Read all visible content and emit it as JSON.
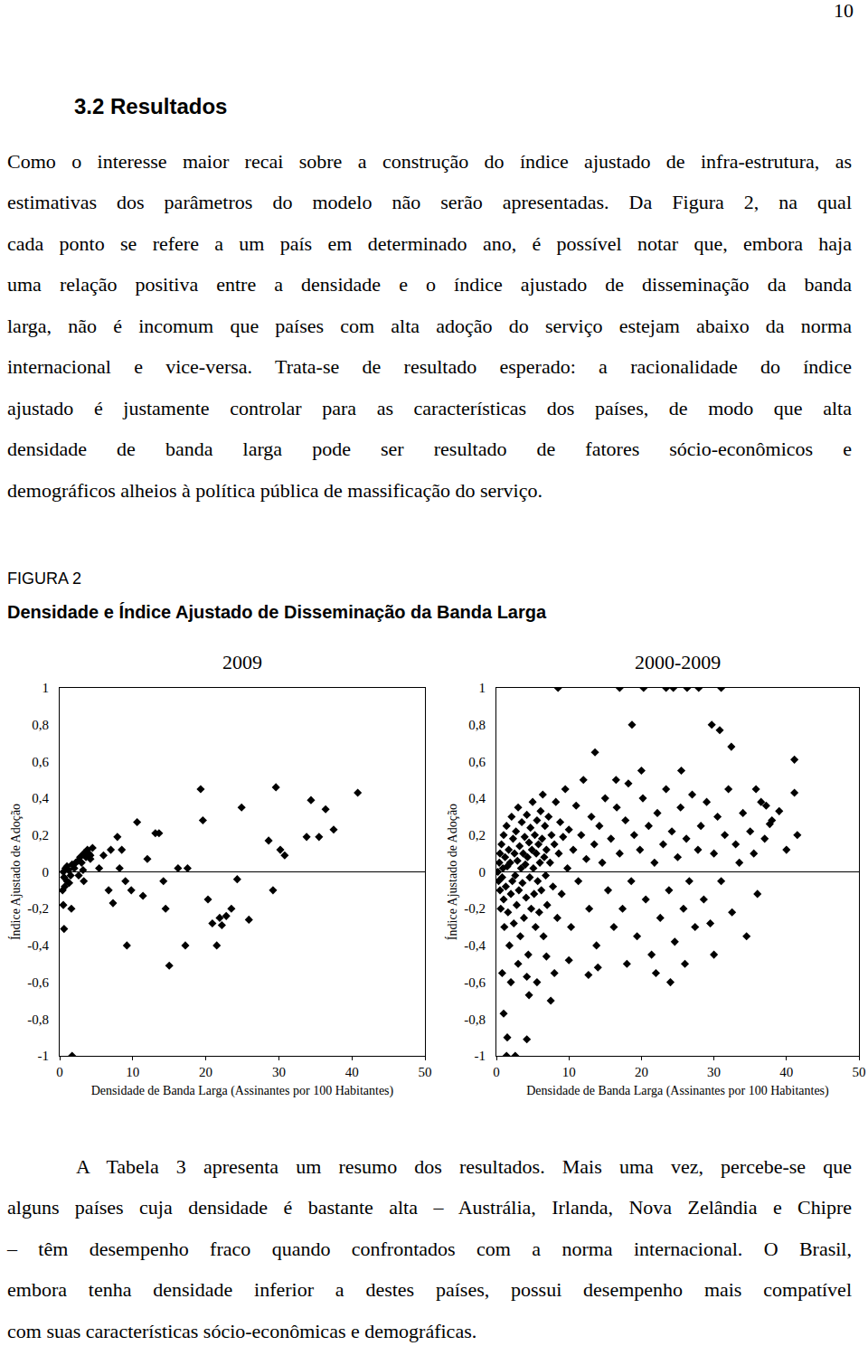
{
  "page_number": "10",
  "heading": "3.2 Resultados",
  "paragraphs": [
    {
      "lines": [
        "Como o interesse maior recai sobre a construção do índice ajustado de infra-estrutura, as",
        "estimativas dos parâmetros do modelo não serão apresentadas. Da Figura 2, na qual",
        "cada ponto se refere a um país em determinado ano, é possível notar que, embora haja",
        "uma relação positiva entre a densidade e o índice ajustado de disseminação da banda",
        "larga, não é incomum que países com alta adoção do serviço estejam abaixo da norma",
        "internacional e vice-versa. Trata-se de resultado esperado: a racionalidade do índice",
        "ajustado é justamente controlar para as características dos países, de modo que alta",
        "densidade de banda larga pode ser resultado de fatores sócio-econômicos e",
        "demográficos alheios à política pública de massificação do serviço."
      ]
    },
    {
      "lines": [
        "A Tabela 3 apresenta um resumo dos resultados. Mais uma vez, percebe-se que",
        "alguns países cuja densidade é bastante alta – Austrália, Irlanda, Nova Zelândia e Chipre",
        "– têm desempenho fraco quando confrontados com a norma internacional. O Brasil,",
        "embora tenha densidade inferior a destes países, possui desempenho mais compatível",
        "com suas características sócio-econômicas e demográficas."
      ]
    }
  ],
  "figure": {
    "label": "FIGURA 2",
    "caption": "Densidade e Índice Ajustado de Disseminação da Banda Larga"
  },
  "chart_data": [
    {
      "type": "scatter",
      "title": "2009",
      "x_label": "Densidade de Banda Larga (Assinantes por 100 Habitantes)",
      "y_label": "Índice Ajustado de Adoção",
      "marker": "diamond",
      "color": "#000000",
      "grid": false,
      "xlim": [
        0,
        50
      ],
      "xticks": [
        0,
        10,
        20,
        30,
        40,
        50
      ],
      "ylim": [
        -1,
        1
      ],
      "yticks": [
        -1,
        {
          "value": -0.8,
          "label": "-0,8"
        },
        {
          "value": -0.6,
          "label": "-0,6"
        },
        {
          "value": -0.4,
          "label": "-0,4"
        },
        {
          "value": -0.2,
          "label": "-0,2"
        },
        0,
        {
          "value": 0.2,
          "label": "0,2"
        },
        {
          "value": 0.4,
          "label": "0,4"
        },
        {
          "value": 0.6,
          "label": "0,6"
        },
        {
          "value": 0.8,
          "label": "0,8"
        },
        1
      ],
      "x": [
        0.5,
        0.6,
        0.8,
        1,
        1.2,
        1,
        1.5,
        1.7,
        2,
        2.2,
        0.7,
        1.3,
        2.5,
        2.8,
        3,
        3.3,
        3.6,
        3.8,
        4,
        4.2,
        4.5,
        2.6,
        3.2,
        0.4,
        0.5,
        0.6,
        1.6,
        1.7,
        3.3,
        4.2,
        5.4,
        6,
        7,
        7.9,
        8.5,
        8.2,
        9,
        9.2,
        6.7,
        7.3,
        9.8,
        10.6,
        11.4,
        12,
        13.1,
        13.6,
        14.2,
        14.5,
        15,
        16.2,
        17.2,
        17.5,
        19.3,
        19.6,
        20.3,
        20.9,
        21.5,
        21.9,
        22.2,
        22.8,
        23.5,
        24.3,
        24.9,
        25.9,
        28.6,
        29.2,
        29.6,
        30.2,
        30.8,
        33.8,
        34.4,
        35.5,
        36.4,
        37.5,
        40.8
      ],
      "values": [
        0,
        -0.03,
        0.02,
        -0.05,
        0.01,
        0.03,
        -0.02,
        0.04,
        0.02,
        0.05,
        -0.08,
        -0.06,
        0.06,
        0.08,
        0.05,
        0.1,
        0.08,
        0.12,
        0.1,
        0.07,
        0.13,
        -0.02,
        0.01,
        -0.1,
        -0.18,
        -0.31,
        -0.2,
        -1,
        -0.05,
        0.09,
        0.02,
        0.09,
        0.12,
        0.19,
        0.12,
        0.02,
        -0.05,
        -0.4,
        -0.1,
        -0.17,
        -0.1,
        0.27,
        -0.13,
        0.07,
        0.21,
        0.21,
        -0.05,
        -0.2,
        -0.51,
        0.02,
        -0.4,
        0.02,
        0.45,
        0.28,
        -0.15,
        -0.28,
        -0.4,
        -0.25,
        -0.29,
        -0.24,
        -0.2,
        -0.04,
        0.35,
        -0.26,
        0.17,
        -0.1,
        0.46,
        0.12,
        0.09,
        0.19,
        0.39,
        0.19,
        0.34,
        0.23,
        0.43
      ]
    },
    {
      "type": "scatter",
      "title": "2000-2009",
      "x_label": "Densidade de Banda Larga (Assinantes por 100 Habitantes)",
      "y_label": "Índice Ajustado de Adoção",
      "marker": "diamond",
      "color": "#000000",
      "grid": false,
      "xlim": [
        0,
        50
      ],
      "xticks": [
        0,
        10,
        20,
        30,
        40,
        50
      ],
      "ylim": [
        -1,
        1
      ],
      "yticks": [
        -1,
        {
          "value": -0.8,
          "label": "-0,8"
        },
        {
          "value": -0.6,
          "label": "-0,6"
        },
        {
          "value": -0.4,
          "label": "-0,4"
        },
        {
          "value": -0.2,
          "label": "-0,2"
        },
        0,
        {
          "value": 0.2,
          "label": "0,2"
        },
        {
          "value": 0.4,
          "label": "0,4"
        },
        {
          "value": 0.6,
          "label": "0,6"
        },
        {
          "value": 0.8,
          "label": "0,8"
        },
        1
      ],
      "x": [
        0.2,
        0.3,
        0.4,
        0.5,
        0.5,
        0.6,
        0.7,
        0.8,
        0.9,
        1,
        1,
        1.1,
        1.2,
        1.3,
        1.4,
        1.5,
        1.6,
        1.7,
        1.8,
        1.9,
        2,
        2.1,
        2.2,
        2.3,
        2.4,
        2.5,
        2.6,
        2.7,
        2.8,
        2.9,
        3,
        3.1,
        3.2,
        3.3,
        3.4,
        3.5,
        3.6,
        3.7,
        3.8,
        3.9,
        4,
        4.1,
        4.2,
        4.3,
        4.4,
        4.5,
        4.6,
        4.7,
        4.8,
        4.9,
        5,
        5.1,
        5.2,
        5.3,
        5.4,
        5.5,
        5.6,
        5.7,
        5.8,
        5.9,
        6,
        6.1,
        6.2,
        6.3,
        6.4,
        6.5,
        6.6,
        6.7,
        6.8,
        6.9,
        7,
        7.2,
        7.4,
        7.6,
        7.8,
        8,
        8.2,
        8.4,
        8.6,
        8.8,
        9,
        9.2,
        9.5,
        9.8,
        10,
        10.3,
        10.6,
        11,
        11.3,
        11.7,
        12,
        12.4,
        12.8,
        13.1,
        13.5,
        13.8,
        14.2,
        14.6,
        15,
        15.4,
        15.8,
        16.2,
        16.6,
        17,
        17.4,
        17.8,
        18.2,
        18.6,
        19,
        19.4,
        19.8,
        20.2,
        20.6,
        21,
        21.4,
        21.8,
        22.2,
        22.6,
        23,
        23.4,
        23.8,
        24.2,
        24.6,
        25,
        25.4,
        25.8,
        26.2,
        26.6,
        27,
        27.4,
        27.8,
        28.2,
        28.6,
        29,
        29.5,
        30,
        30.5,
        31,
        31.5,
        32,
        32.5,
        33,
        33.5,
        34,
        34.5,
        35,
        35.5,
        36,
        36.5,
        37,
        38,
        39,
        40,
        41.5,
        37.7,
        37.2,
        35.8,
        41.1,
        41.1,
        8.5,
        17,
        20.3,
        23.4,
        24.4,
        26.3,
        27.9,
        31,
        18.7,
        29.7,
        30.8,
        32.4,
        13.6,
        20,
        16.5,
        25.5,
        1.5,
        4.2,
        1.4,
        2.6,
        1,
        5.6,
        4.2,
        4.5,
        12.7,
        6.9,
        2,
        3,
        8,
        10,
        14,
        18,
        22,
        26,
        30,
        24,
        0.8,
        7.5
      ],
      "values": [
        0,
        -0.05,
        0.05,
        -0.1,
        0.1,
        -0.2,
        0.15,
        -0.03,
        0.02,
        -0.15,
        0.2,
        -0.3,
        0.08,
        -0.08,
        0.25,
        0.03,
        -0.22,
        0.12,
        -0.4,
        0.05,
        -0.12,
        0.3,
        -0.05,
        0.18,
        -0.28,
        0.1,
        -0.02,
        0.22,
        -0.18,
        0.06,
        0.35,
        -0.1,
        0.14,
        -0.35,
        0.02,
        0.27,
        -0.06,
        0.1,
        -0.25,
        0.19,
        0.04,
        -0.14,
        0.31,
        0.08,
        -0.45,
        0.16,
        -0.03,
        0.24,
        -0.2,
        0.12,
        0.38,
        0.02,
        -0.12,
        0.2,
        -0.3,
        0.1,
        0.28,
        -0.05,
        0.15,
        -0.22,
        0.05,
        0.33,
        -0.1,
        0.18,
        0.42,
        -0.35,
        0.08,
        0.25,
        -0.02,
        0.12,
        -0.18,
        0.3,
        0.05,
        0.2,
        -0.08,
        0.15,
        0.38,
        -0.25,
        0.1,
        0.27,
        -0.12,
        0.19,
        0.45,
        0.02,
        0.23,
        -0.3,
        0.12,
        0.36,
        -0.05,
        0.2,
        0.5,
        0.07,
        -0.2,
        0.3,
        0.15,
        -0.4,
        0.25,
        0.05,
        0.4,
        -0.1,
        0.18,
        -0.3,
        0.35,
        0.1,
        -0.2,
        0.28,
        0.48,
        -0.05,
        0.2,
        -0.35,
        0.12,
        0.4,
        -0.15,
        0.25,
        -0.45,
        0.05,
        0.32,
        -0.25,
        0.15,
        0.45,
        -0.1,
        0.22,
        -0.38,
        0.08,
        0.35,
        -0.2,
        0.18,
        -0.05,
        0.42,
        -0.3,
        0.12,
        0.25,
        -0.15,
        0.38,
        -0.28,
        0.1,
        0.3,
        -0.05,
        0.2,
        0.45,
        -0.22,
        0.15,
        0.05,
        0.32,
        -0.35,
        0.22,
        0.1,
        -0.12,
        0.38,
        0.18,
        0.28,
        0.33,
        0.12,
        0.2,
        0.26,
        0.36,
        0.45,
        0.43,
        0.61,
        1,
        1,
        1,
        1,
        1,
        1,
        1,
        1,
        0.8,
        0.8,
        0.77,
        0.68,
        0.65,
        0.55,
        0.5,
        0.55,
        -0.9,
        -0.91,
        -1,
        -1,
        -0.77,
        -0.6,
        -0.57,
        -0.67,
        -0.56,
        -0.46,
        -0.6,
        -0.5,
        -0.55,
        -0.48,
        -0.52,
        -0.5,
        -0.55,
        -0.5,
        -0.45,
        -0.6,
        -0.55,
        -0.7
      ]
    }
  ]
}
